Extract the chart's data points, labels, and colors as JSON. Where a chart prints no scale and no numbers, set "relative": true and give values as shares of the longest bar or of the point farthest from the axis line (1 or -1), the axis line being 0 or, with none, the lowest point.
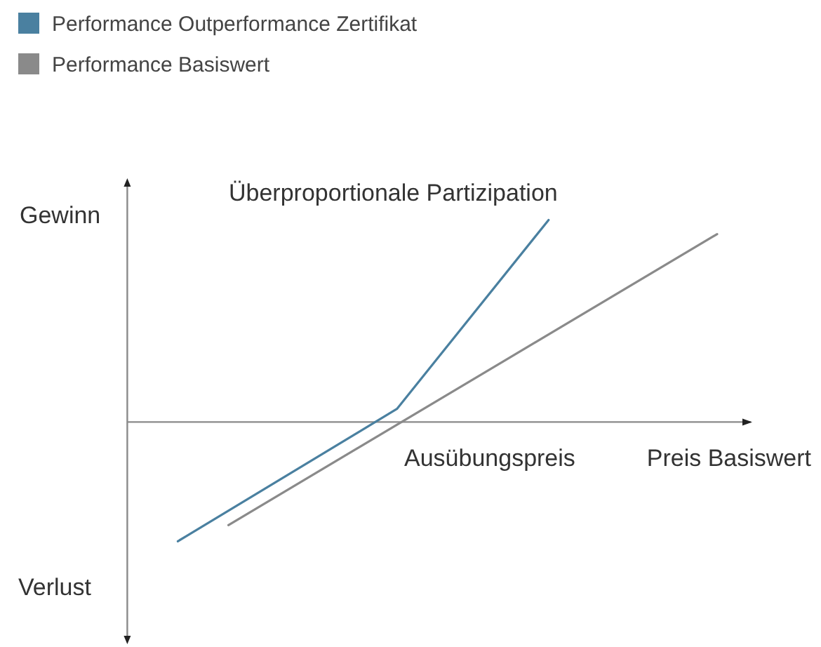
{
  "chart_data": {
    "type": "line",
    "relative": true,
    "xlabel": "Preis Basiswert",
    "categories": [
      null,
      null,
      null,
      null,
      null,
      null,
      null,
      null,
      null,
      null,
      null,
      null,
      null,
      null,
      null,
      null,
      null,
      null,
      null,
      null,
      null,
      null,
      null,
      null,
      null,
      null,
      null,
      null,
      null,
      null,
      null,
      null,
      null,
      null,
      null,
      null,
      null,
      null
    ],
    "annotations": [
      "Gewinn",
      "Verlust",
      "Überproportionale Partizipation",
      "Ausübungspreis"
    ],
    "legend": "top left",
    "series": [
      {
        "name": "Performance Outperformance Zertifikat",
        "color": "#4a80a0",
        "values": [
          null,
          null,
          null,
          -0.59,
          null,
          null,
          null,
          null,
          null,
          null,
          null,
          null,
          null,
          null,
          null,
          null,
          0.065,
          null,
          null,
          null,
          null,
          null,
          null,
          null,
          null,
          1,
          null,
          null,
          null,
          null,
          null,
          null,
          null,
          null,
          null,
          null,
          null,
          null
        ]
      },
      {
        "name": "Performance Basiswert",
        "color": "#8a8a8a",
        "values": [
          null,
          null,
          null,
          null,
          null,
          null,
          -0.51,
          null,
          null,
          null,
          null,
          null,
          null,
          null,
          null,
          null,
          null,
          null,
          null,
          null,
          null,
          null,
          null,
          null,
          null,
          null,
          null,
          null,
          null,
          null,
          null,
          null,
          null,
          null,
          null,
          0.93,
          null,
          null
        ]
      }
    ]
  }
}
